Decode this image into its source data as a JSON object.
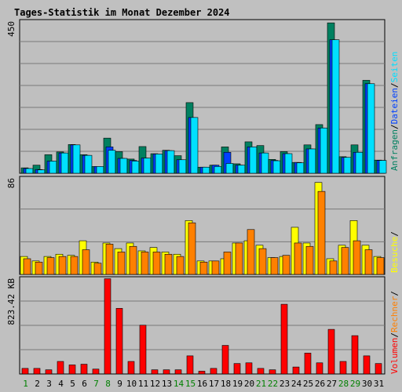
{
  "chart_data": {
    "type": "bar",
    "title": "Tages-Statistik im Monat Dezember 2024",
    "colors": {
      "background": "#c0c0c0",
      "panel": "#bfbfbf",
      "border": "#000000",
      "gridline": "#7a7a7a",
      "title": "#0000ff",
      "weekday_label": "#000000",
      "weekend_label": "#008000",
      "anfragen": "#008060",
      "dateien": "#0040ff",
      "seiten": "#00e0ff",
      "besuche": "#ffff00",
      "rechner": "#ff8000",
      "volumen": "#ff0000"
    },
    "categories": [
      "1",
      "2",
      "3",
      "4",
      "5",
      "6",
      "7",
      "8",
      "9",
      "10",
      "11",
      "12",
      "13",
      "14",
      "15",
      "16",
      "17",
      "18",
      "19",
      "20",
      "21",
      "22",
      "23",
      "24",
      "25",
      "26",
      "27",
      "28",
      "29",
      "30",
      "31"
    ],
    "weekend_days": [
      "1",
      "7",
      "8",
      "14",
      "15",
      "21",
      "22",
      "28",
      "29"
    ],
    "panels": [
      {
        "id": "requests",
        "axis_max_label": "450",
        "ylim": [
          0,
          450
        ],
        "series": [
          {
            "name": "Anfragen",
            "values": [
              16,
              24,
              55,
              63,
              85,
              55,
              20,
              104,
              64,
              42,
              79,
              58,
              68,
              52,
              209,
              18,
              24,
              78,
              28,
              93,
              82,
              41,
              64,
              32,
              84,
              144,
              445,
              49,
              84,
              275,
              39
            ]
          },
          {
            "name": "Dateien",
            "values": [
              14,
              11,
              36,
              60,
              84,
              53,
              20,
              78,
              44,
              38,
              45,
              57,
              67,
              40,
              165,
              18,
              24,
              62,
              24,
              78,
              60,
              38,
              58,
              32,
              72,
              134,
              395,
              47,
              62,
              265,
              38
            ]
          },
          {
            "name": "Seiten",
            "values": [
              14,
              10,
              36,
              60,
              84,
              53,
              20,
              68,
              44,
              36,
              45,
              57,
              67,
              40,
              165,
              18,
              20,
              29,
              24,
              78,
              60,
              37,
              58,
              31,
              72,
              134,
              395,
              47,
              62,
              265,
              38
            ]
          }
        ]
      },
      {
        "id": "visits",
        "axis_max_label": "86",
        "ylim": [
          0,
          86
        ],
        "series": [
          {
            "name": "Besuche",
            "values": [
              16,
              12,
              16,
              18,
              17,
              30,
              11,
              28,
              23,
              28,
              21,
              24,
              20,
              18,
              48,
              12,
              12,
              14,
              28,
              30,
              26,
              15,
              16,
              42,
              28,
              82,
              14,
              26,
              48,
              26,
              16
            ]
          },
          {
            "name": "Rechner",
            "values": [
              14,
              11,
              15,
              16,
              16,
              22,
              10,
              27,
              20,
              25,
              20,
              20,
              18,
              16,
              46,
              11,
              12,
              20,
              28,
              40,
              23,
              15,
              17,
              28,
              25,
              74,
              12,
              24,
              30,
              22,
              15
            ]
          }
        ]
      },
      {
        "id": "volume",
        "axis_max_label": "823.42 KB",
        "ylim": [
          0,
          823.42
        ],
        "series": [
          {
            "name": "Volumen",
            "values": [
              48,
              48,
              36,
              108,
              78,
              84,
              42,
              820,
              565,
              108,
              420,
              36,
              36,
              36,
              156,
              24,
              48,
              246,
              90,
              96,
              48,
              36,
              600,
              60,
              180,
              96,
              384,
              108,
              330,
              156,
              90
            ]
          }
        ]
      }
    ],
    "side_legend": {
      "requests": [
        "Anfragen",
        "/",
        "Dateien",
        "/",
        "Seiten"
      ],
      "visits": [
        "Besuche",
        "/"
      ],
      "volume": [
        "Volumen",
        "/",
        "Rechner",
        "/"
      ]
    }
  }
}
